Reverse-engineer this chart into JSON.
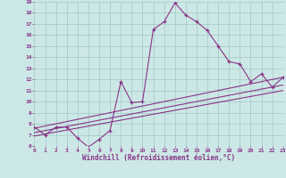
{
  "xlabel": "Windchill (Refroidissement éolien,°C)",
  "background_color": "#cce8e6",
  "grid_color": "#aacccc",
  "line_color": "#883388",
  "xmin": 0,
  "xmax": 23,
  "ymin": 6,
  "ymax": 19,
  "series": [
    [
      0,
      7.7
    ],
    [
      1,
      7.0
    ],
    [
      2,
      7.7
    ],
    [
      3,
      7.7
    ],
    [
      4,
      6.7
    ],
    [
      5,
      5.9
    ],
    [
      6,
      6.6
    ],
    [
      7,
      7.4
    ],
    [
      8,
      11.8
    ],
    [
      9,
      9.9
    ],
    [
      10,
      10.0
    ],
    [
      11,
      16.5
    ],
    [
      12,
      17.2
    ],
    [
      13,
      18.9
    ],
    [
      14,
      17.8
    ],
    [
      15,
      17.2
    ],
    [
      16,
      16.4
    ],
    [
      17,
      15.0
    ],
    [
      18,
      13.6
    ],
    [
      19,
      13.4
    ],
    [
      20,
      11.8
    ],
    [
      21,
      12.5
    ],
    [
      22,
      11.3
    ],
    [
      23,
      12.2
    ]
  ],
  "trend_lines": [
    {
      "x": [
        0,
        23
      ],
      "y": [
        7.6,
        12.2
      ]
    },
    {
      "x": [
        0,
        23
      ],
      "y": [
        7.2,
        11.5
      ]
    },
    {
      "x": [
        0,
        23
      ],
      "y": [
        6.9,
        11.0
      ]
    }
  ]
}
